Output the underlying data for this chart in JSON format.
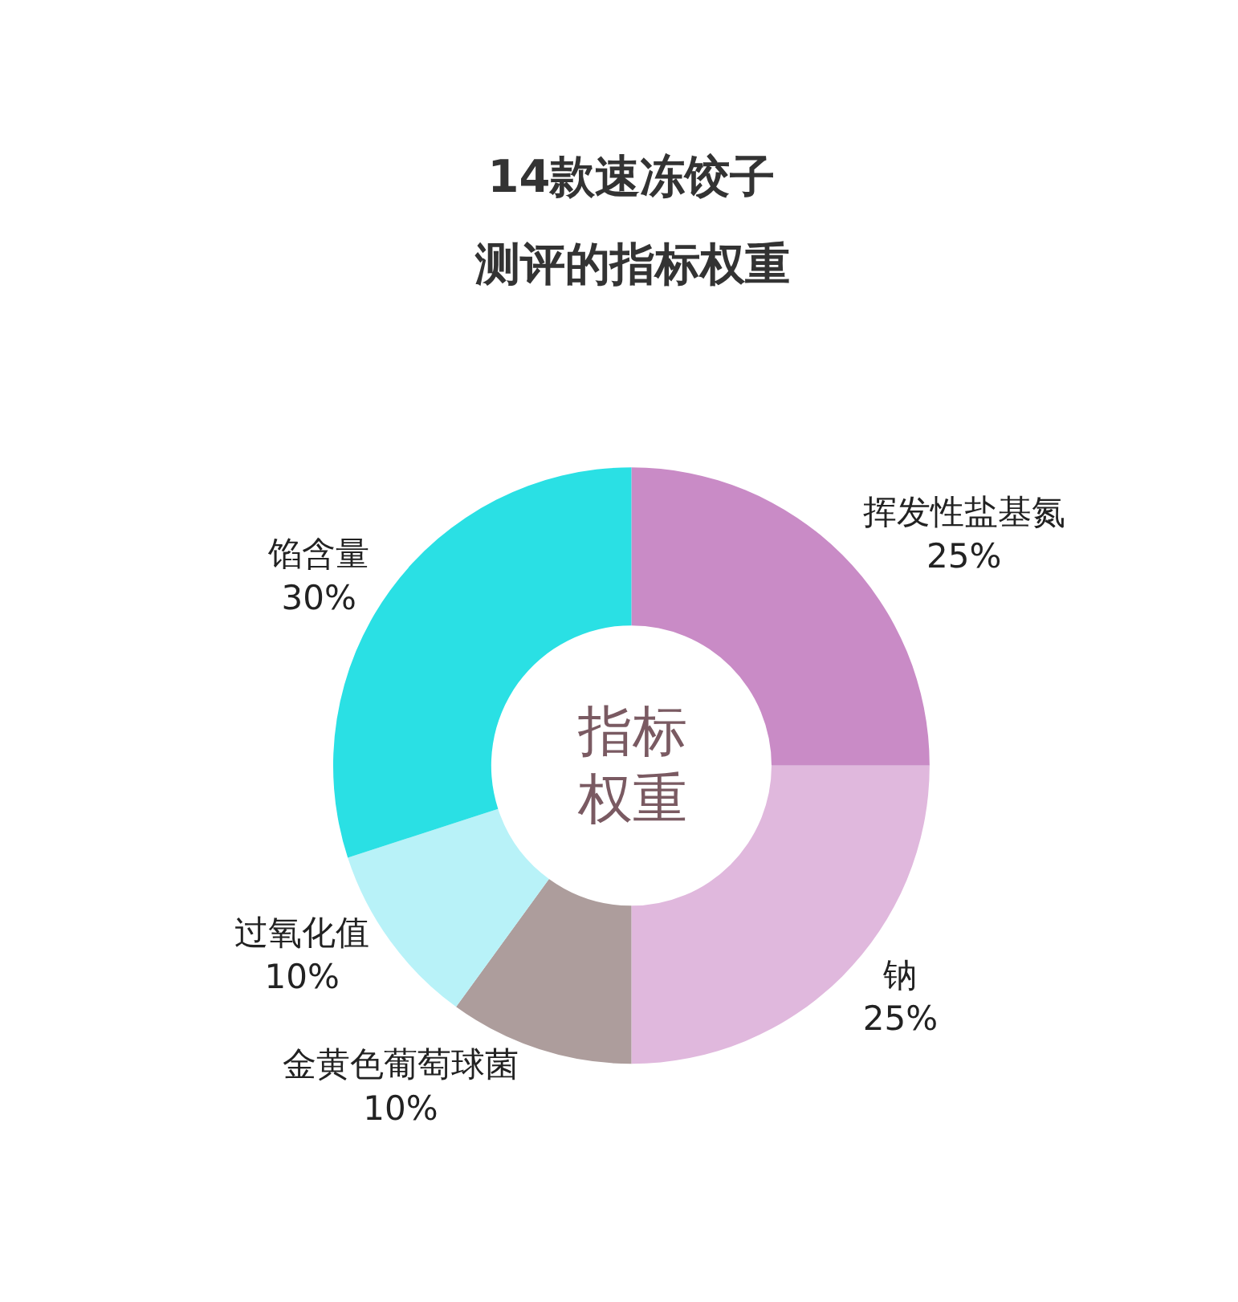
{
  "chart_data": {
    "type": "donut",
    "title": "14款速冻饺子",
    "subtitle": "测评的指标权重",
    "categories": [
      "挥发性盐基氮",
      "钠",
      "金黄色葡萄球菌",
      "过氧化值",
      "馅含量"
    ],
    "values": [
      25,
      25,
      10,
      10,
      30
    ],
    "value_labels": [
      "25%",
      "25%",
      "10%",
      "10%",
      "30%"
    ],
    "colors": [
      "#c98bc6",
      "#e0b8dd",
      "#ad9d9c",
      "#b8f2f8",
      "#2ae0e4"
    ],
    "annotations": [
      "指标",
      "权重"
    ],
    "legend": false
  }
}
